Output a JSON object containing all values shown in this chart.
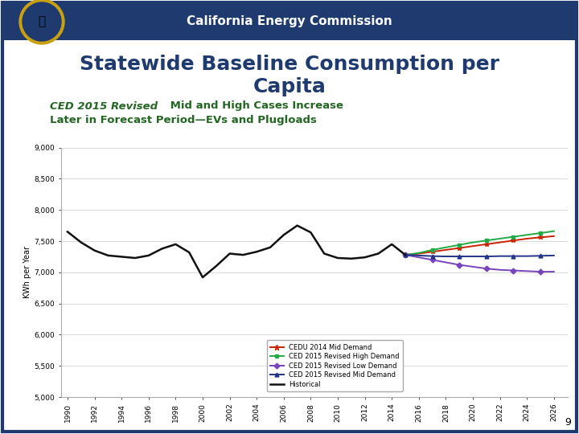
{
  "header_bg": "#1e3a6e",
  "header_text": "California Energy Commission",
  "slide_bg": "#ffffff",
  "title_text": "Statewide Baseline Consumption per\nCapita",
  "ylabel": "KWh per Year",
  "ylim": [
    5000,
    9000
  ],
  "yticks": [
    5000,
    5500,
    6000,
    6500,
    7000,
    7500,
    8000,
    8500,
    9000
  ],
  "ytick_labels": [
    "5,000",
    "5,500",
    "6,000",
    "6,500",
    "7,000",
    "7,500",
    "8,000",
    "8,500",
    "9,000"
  ],
  "page_number": "9",
  "historical_years_full": [
    1990,
    1991,
    1992,
    1993,
    1994,
    1995,
    1996,
    1997,
    1998,
    1999,
    2000,
    2001,
    2002,
    2003,
    2004,
    2005,
    2006,
    2007,
    2008,
    2009,
    2010,
    2011,
    2012,
    2013,
    2014,
    2015
  ],
  "historical_values": [
    7650,
    7480,
    7350,
    7270,
    7250,
    7230,
    7270,
    7380,
    7450,
    7320,
    6920,
    7100,
    7300,
    7280,
    7330,
    7400,
    7600,
    7750,
    7640,
    7300,
    7230,
    7220,
    7240,
    7300,
    7450,
    7280
  ],
  "forecast_years": [
    2015,
    2016,
    2017,
    2018,
    2019,
    2020,
    2021,
    2022,
    2023,
    2024,
    2025,
    2026
  ],
  "cedu2014_mid": [
    7280,
    7300,
    7330,
    7360,
    7390,
    7420,
    7450,
    7480,
    7510,
    7540,
    7560,
    7580
  ],
  "ced2015_high": [
    7280,
    7310,
    7360,
    7400,
    7440,
    7480,
    7510,
    7540,
    7570,
    7600,
    7630,
    7660
  ],
  "ced2015_low": [
    7280,
    7240,
    7200,
    7160,
    7120,
    7090,
    7060,
    7040,
    7030,
    7020,
    7010,
    7010
  ],
  "ced2015_mid": [
    7280,
    7270,
    7260,
    7255,
    7255,
    7255,
    7255,
    7260,
    7260,
    7260,
    7265,
    7270
  ],
  "colors": {
    "cedu2014_mid": "#cc2200",
    "ced2015_high": "#22aa44",
    "ced2015_low": "#7744bb",
    "ced2015_mid": "#223388",
    "historical": "#111111"
  },
  "legend_labels": [
    "CEDU 2014 Mid Demand",
    "CED 2015 Revised High Demand",
    "CED 2015 Revised Low Demand",
    "CED 2015 Revised Mid Demand",
    "Historical"
  ],
  "xticks": [
    1990,
    1992,
    1994,
    1996,
    1998,
    2000,
    2002,
    2004,
    2006,
    2008,
    2010,
    2012,
    2014,
    2016,
    2018,
    2020,
    2022,
    2024,
    2026
  ],
  "xtick_labels": [
    "1990",
    "1992",
    "1994",
    "1996",
    "1998",
    "2000",
    "2002",
    "2004",
    "2006",
    "2008",
    "2010",
    "2012",
    "2014",
    "2016",
    "2018",
    "2020",
    "2022",
    "2024",
    "2026"
  ]
}
